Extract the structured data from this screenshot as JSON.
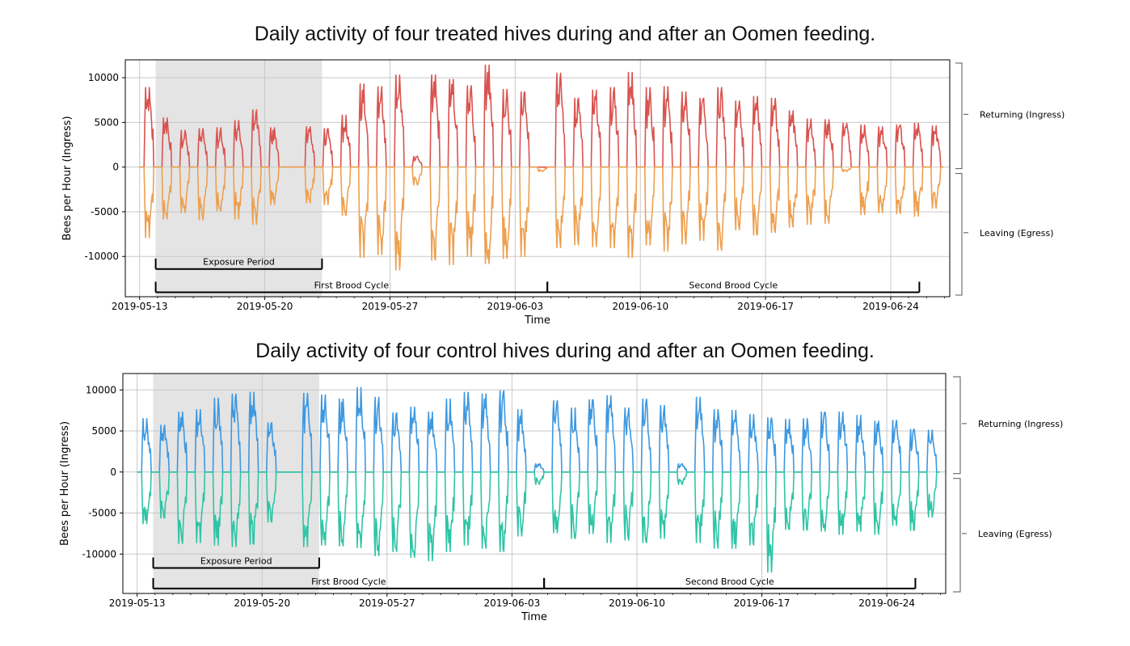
{
  "chart_data": [
    {
      "type": "line",
      "title": "Daily activity of four treated hives during and after an Oomen feeding.",
      "xlabel": "Time",
      "ylabel": "Bees per Hour (Ingress)",
      "x_tick_labels": [
        "2019-05-13",
        "2019-05-20",
        "2019-05-27",
        "2019-06-03",
        "2019-06-10",
        "2019-06-17",
        "2019-06-24"
      ],
      "y_tick_labels": [
        "10000",
        "5000",
        "0",
        "-5000",
        "-10000"
      ],
      "xlim_days_from_2019_05_13": [
        -0.8,
        45.3
      ],
      "ylim": [
        -14500,
        12000
      ],
      "grid": true,
      "colors": {
        "returning": "#d9534f",
        "leaving": "#eda050",
        "shade": "#e4e4e4"
      },
      "shaded_region": {
        "label": "Exposure Period",
        "start_day": 0.9,
        "end_day": 10.2
      },
      "brackets": [
        {
          "label": "Exposure Period",
          "start_day": 0.9,
          "end_day": 10.2,
          "level": -11400
        },
        {
          "label": "First Brood Cycle",
          "start_day": 0.9,
          "end_day": 22.8,
          "level": -14000
        },
        {
          "label": "Second Brood Cycle",
          "start_day": 22.8,
          "end_day": 43.6,
          "level": -14000
        }
      ],
      "side_labels": {
        "top": "Returning (Ingress)",
        "bottom": "Leaving (Egress)"
      },
      "series": [
        {
          "name": "Returning (Ingress)",
          "x_days": [
            0,
            1,
            2,
            3,
            4,
            5,
            6,
            7,
            8,
            9,
            10,
            11,
            12,
            13,
            14,
            15,
            16,
            17,
            18,
            19,
            20,
            21,
            22,
            23,
            24,
            25,
            26,
            27,
            28,
            29,
            30,
            31,
            32,
            33,
            34,
            35,
            36,
            37,
            38,
            39,
            40,
            41,
            42,
            43,
            44
          ],
          "daily_peak": [
            8900,
            5500,
            4100,
            4300,
            4400,
            5200,
            6400,
            4400,
            0,
            4500,
            4300,
            5800,
            9300,
            9000,
            10300,
            1200,
            10300,
            9800,
            9100,
            11400,
            8700,
            8400,
            0,
            10500,
            7700,
            8600,
            8900,
            10600,
            8900,
            9000,
            8400,
            7700,
            8900,
            7400,
            7900,
            7700,
            6300,
            5400,
            5300,
            4900,
            4700,
            4500,
            4700,
            4900,
            4600
          ]
        },
        {
          "name": "Leaving (Egress)",
          "x_days": [
            0,
            1,
            2,
            3,
            4,
            5,
            6,
            7,
            8,
            9,
            10,
            11,
            12,
            13,
            14,
            15,
            16,
            17,
            18,
            19,
            20,
            21,
            22,
            23,
            24,
            25,
            26,
            27,
            28,
            29,
            30,
            31,
            32,
            33,
            34,
            35,
            36,
            37,
            38,
            39,
            40,
            41,
            42,
            43,
            44
          ],
          "daily_trough": [
            -7900,
            -5800,
            -5100,
            -5900,
            -4900,
            -5800,
            -6400,
            -4200,
            0,
            -4000,
            -4200,
            -5400,
            -10100,
            -9800,
            -11500,
            -2000,
            -10400,
            -10900,
            -10000,
            -10800,
            -10200,
            -10000,
            -500,
            -9000,
            -8700,
            -8900,
            -9000,
            -10100,
            -8700,
            -9400,
            -8600,
            -8200,
            -9300,
            -7000,
            -7600,
            -7300,
            -6700,
            -6400,
            -6300,
            -500,
            -5300,
            -5100,
            -5200,
            -5500,
            -4600
          ]
        }
      ]
    },
    {
      "type": "line",
      "title": "Daily activity of four control hives during and after an Oomen feeding.",
      "xlabel": "Time",
      "ylabel": "Bees per Hour (Ingress)",
      "x_tick_labels": [
        "2019-05-13",
        "2019-05-20",
        "2019-05-27",
        "2019-06-03",
        "2019-06-10",
        "2019-06-17",
        "2019-06-24"
      ],
      "y_tick_labels": [
        "10000",
        "5000",
        "0",
        "-5000",
        "-10000"
      ],
      "xlim_days_from_2019_05_13": [
        -0.8,
        45.3
      ],
      "ylim": [
        -14800,
        12000
      ],
      "grid": true,
      "colors": {
        "returning": "#3d98e0",
        "leaving": "#2fc4a6",
        "shade": "#e4e4e4"
      },
      "shaded_region": {
        "label": "Exposure Period",
        "start_day": 0.9,
        "end_day": 10.2
      },
      "brackets": [
        {
          "label": "Exposure Period",
          "start_day": 0.9,
          "end_day": 10.2,
          "level": -11700
        },
        {
          "label": "First Brood Cycle",
          "start_day": 0.9,
          "end_day": 22.8,
          "level": -14200
        },
        {
          "label": "Second Brood Cycle",
          "start_day": 22.8,
          "end_day": 43.6,
          "level": -14200
        }
      ],
      "side_labels": {
        "top": "Returning (Ingress)",
        "bottom": "Leaving (Egress)"
      },
      "series": [
        {
          "name": "Returning (Ingress)",
          "x_days": [
            0,
            1,
            2,
            3,
            4,
            5,
            6,
            7,
            8,
            9,
            10,
            11,
            12,
            13,
            14,
            15,
            16,
            17,
            18,
            19,
            20,
            21,
            22,
            23,
            24,
            25,
            26,
            27,
            28,
            29,
            30,
            31,
            32,
            33,
            34,
            35,
            36,
            37,
            38,
            39,
            40,
            41,
            42,
            43,
            44
          ],
          "daily_peak": [
            6500,
            5700,
            7300,
            7600,
            9000,
            9500,
            9700,
            6000,
            0,
            9600,
            9400,
            8900,
            10300,
            9100,
            7200,
            7900,
            7300,
            8900,
            9700,
            9500,
            9900,
            7600,
            1000,
            8700,
            7800,
            8800,
            9300,
            7800,
            8900,
            8100,
            1000,
            9100,
            7600,
            7500,
            7000,
            6600,
            6400,
            6500,
            7300,
            7300,
            6900,
            6200,
            6300,
            5200,
            5100
          ]
        },
        {
          "name": "Leaving (Egress)",
          "x_days": [
            0,
            1,
            2,
            3,
            4,
            5,
            6,
            7,
            8,
            9,
            10,
            11,
            12,
            13,
            14,
            15,
            16,
            17,
            18,
            19,
            20,
            21,
            22,
            23,
            24,
            25,
            26,
            27,
            28,
            29,
            30,
            31,
            32,
            33,
            34,
            35,
            36,
            37,
            38,
            39,
            40,
            41,
            42,
            43,
            44
          ],
          "daily_trough": [
            -6300,
            -5600,
            -8700,
            -8600,
            -8900,
            -9100,
            -8800,
            -6100,
            0,
            -9100,
            -8900,
            -9000,
            -9200,
            -10200,
            -9700,
            -10400,
            -10800,
            -9700,
            -8900,
            -9300,
            -9700,
            -7800,
            -1500,
            -7400,
            -8100,
            -7500,
            -8600,
            -8300,
            -8600,
            -8100,
            -1500,
            -8600,
            -9300,
            -9300,
            -8900,
            -12200,
            -7000,
            -7100,
            -7200,
            -7600,
            -7200,
            -7600,
            -6500,
            -7100,
            -5500
          ]
        }
      ]
    }
  ]
}
